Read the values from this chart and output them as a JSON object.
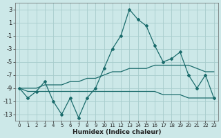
{
  "xlabel": "Humidex (Indice chaleur)",
  "background_color": "#cce8e8",
  "grid_color": "#a8cccc",
  "line_color": "#1a6b6b",
  "x": [
    0,
    1,
    2,
    3,
    4,
    5,
    6,
    7,
    8,
    9,
    10,
    11,
    12,
    13,
    14,
    15,
    16,
    17,
    18,
    19,
    20,
    21,
    22,
    23
  ],
  "y_main": [
    -9.0,
    -10.5,
    -9.5,
    -8.0,
    -11.0,
    -13.0,
    -10.5,
    -13.5,
    -10.5,
    -9.0,
    -6.0,
    -3.0,
    -1.0,
    3.0,
    1.5,
    0.5,
    -2.5,
    -5.0,
    -4.5,
    -3.5,
    -7.0,
    -9.0,
    -7.0,
    -10.5
  ],
  "y_upper": [
    -9.0,
    -9.0,
    -9.0,
    -8.5,
    -8.5,
    -8.5,
    -8.0,
    -8.0,
    -7.5,
    -7.5,
    -7.0,
    -6.5,
    -6.5,
    -6.0,
    -6.0,
    -6.0,
    -5.5,
    -5.5,
    -5.5,
    -5.5,
    -5.5,
    -6.0,
    -6.5,
    -6.5
  ],
  "y_lower": [
    -9.0,
    -9.5,
    -9.5,
    -9.5,
    -9.5,
    -9.5,
    -9.5,
    -9.5,
    -9.5,
    -9.5,
    -9.5,
    -9.5,
    -9.5,
    -9.5,
    -9.5,
    -9.5,
    -9.5,
    -10.0,
    -10.0,
    -10.0,
    -10.5,
    -10.5,
    -10.5,
    -10.5
  ],
  "ylim": [
    -14,
    4
  ],
  "xlim": [
    -0.5,
    23.5
  ],
  "yticks": [
    3,
    1,
    -1,
    -3,
    -5,
    -7,
    -9,
    -11,
    -13
  ],
  "xticks": [
    0,
    1,
    2,
    3,
    4,
    5,
    6,
    7,
    8,
    9,
    10,
    11,
    12,
    13,
    14,
    15,
    16,
    17,
    18,
    19,
    20,
    21,
    22,
    23
  ]
}
